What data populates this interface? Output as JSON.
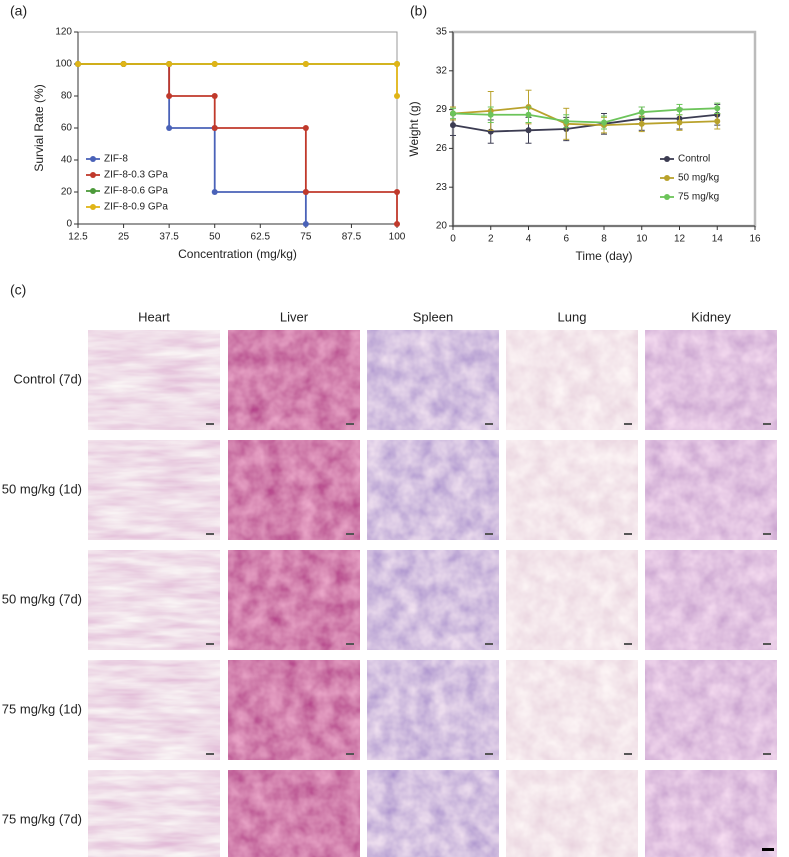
{
  "chart_data": [
    {
      "type": "line",
      "panel_label": "(a)",
      "x_label": "Concentration (mg/kg)",
      "y_label": "Survial Rate (%)",
      "xlim": [
        12.5,
        100
      ],
      "xticks": [
        12.5,
        25,
        37.5,
        50,
        62.5,
        75,
        87.5,
        100
      ],
      "ylim": [
        0,
        120
      ],
      "yticks": [
        0,
        20,
        40,
        60,
        80,
        100,
        120
      ],
      "legend": "lower-left",
      "series": [
        {
          "name": "ZIF-8",
          "color": "#4a62b8",
          "x": [
            12.5,
            25,
            37.5,
            37.5,
            50,
            50,
            75,
            75
          ],
          "values": [
            100,
            100,
            100,
            60,
            60,
            20,
            20,
            0
          ]
        },
        {
          "name": "ZIF-8-0.3 GPa",
          "color": "#c0392b",
          "x": [
            12.5,
            25,
            37.5,
            37.5,
            50,
            50,
            75,
            75,
            100,
            100
          ],
          "values": [
            100,
            100,
            100,
            80,
            80,
            60,
            60,
            20,
            20,
            0
          ]
        },
        {
          "name": "ZIF-8-0.6 GPa",
          "color": "#4c9a3a",
          "x": [
            12.5,
            25,
            37.5,
            50,
            75,
            100
          ],
          "values": [
            100,
            100,
            100,
            100,
            100,
            100
          ]
        },
        {
          "name": "ZIF-8-0.9 GPa",
          "color": "#e0b416",
          "x": [
            12.5,
            25,
            37.5,
            50,
            75,
            100,
            100
          ],
          "values": [
            100,
            100,
            100,
            100,
            100,
            100,
            80
          ]
        }
      ]
    },
    {
      "type": "line",
      "panel_label": "(b)",
      "x_label": "Time (day)",
      "y_label": "Weight  (g)",
      "x": [
        0,
        2,
        4,
        6,
        8,
        10,
        12,
        14
      ],
      "xlim": [
        0,
        16
      ],
      "xticks": [
        0,
        2,
        4,
        6,
        8,
        10,
        12,
        14,
        16
      ],
      "ylim": [
        20,
        35
      ],
      "yticks": [
        20,
        23,
        26,
        29,
        32,
        35
      ],
      "legend": "right",
      "series": [
        {
          "name": "Control",
          "color": "#3c3c52",
          "values": [
            27.8,
            27.3,
            27.4,
            27.5,
            27.9,
            28.3,
            28.3,
            28.6
          ],
          "errors": [
            0.8,
            0.9,
            1.0,
            0.9,
            0.8,
            0.9,
            0.8,
            0.8
          ]
        },
        {
          "name": "50 mg/kg",
          "color": "#b9a22c",
          "values": [
            28.7,
            28.9,
            29.2,
            27.9,
            27.8,
            27.9,
            28.0,
            28.1
          ],
          "errors": [
            0.5,
            1.5,
            1.3,
            1.2,
            0.6,
            0.6,
            0.6,
            0.6
          ]
        },
        {
          "name": "75 mg/kg",
          "color": "#6cc45a",
          "values": [
            28.7,
            28.6,
            28.6,
            28.1,
            28.0,
            28.8,
            29.0,
            29.1
          ],
          "errors": [
            0.4,
            0.6,
            0.6,
            0.5,
            0.5,
            0.4,
            0.4,
            0.4
          ]
        }
      ]
    }
  ],
  "histology": {
    "panel_label": "(c)",
    "columns": [
      "Heart",
      "Liver",
      "Spleen",
      "Lung",
      "Kidney"
    ],
    "rows": [
      "Control (7d)",
      "50 mg/kg (1d)",
      "50 mg/kg (7d)",
      "75 mg/kg (1d)",
      "75 mg/kg (7d)"
    ]
  }
}
